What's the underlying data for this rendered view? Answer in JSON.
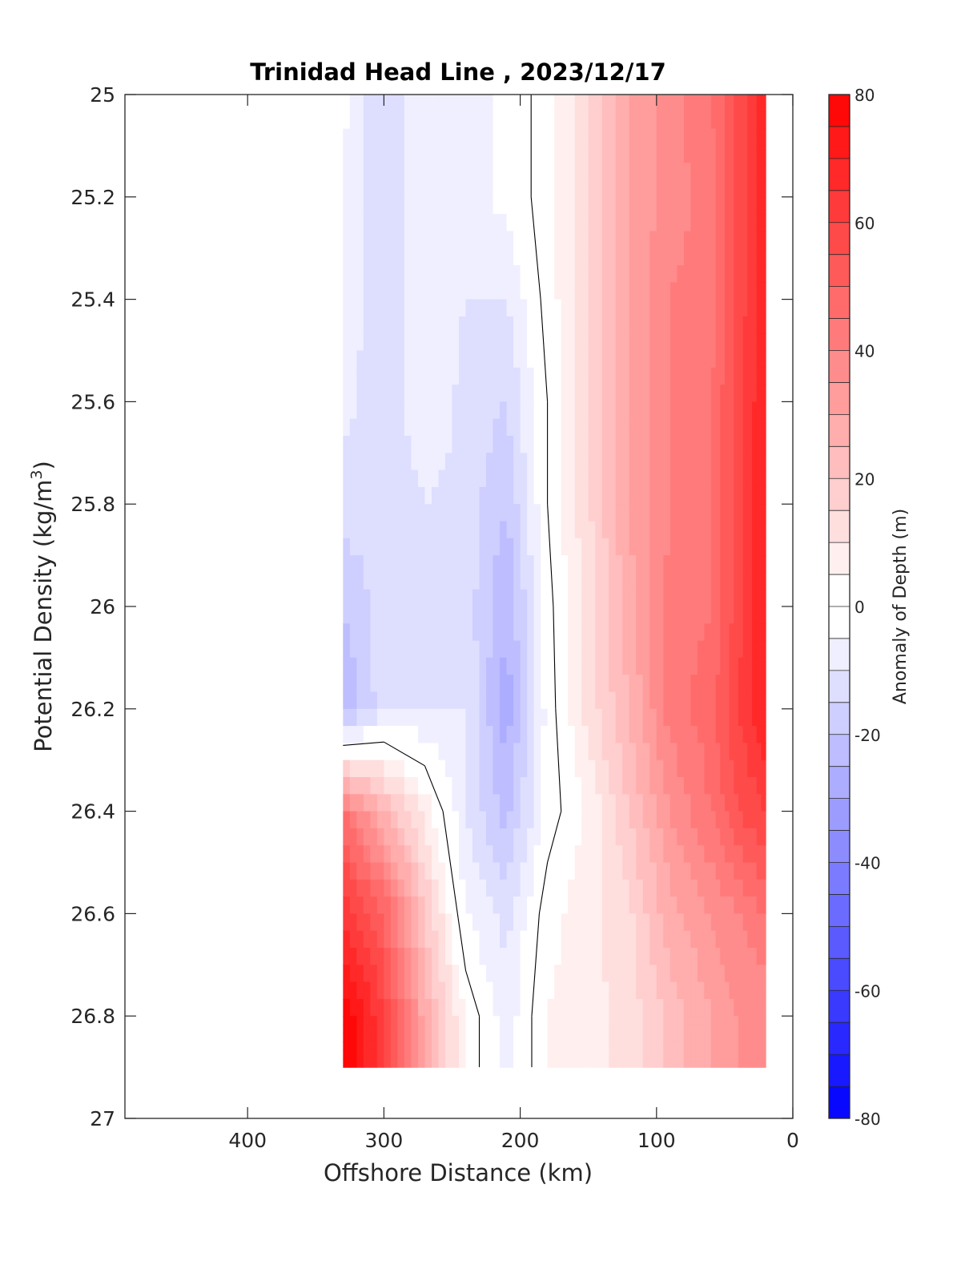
{
  "chart_data": {
    "type": "heatmap",
    "title": "Trinidad Head Line , 2023/12/17",
    "xlabel": "Offshore Distance (km)",
    "ylabel": "Potential Density (kg/m",
    "ylabel_sup": "3",
    "ylabel_close": ")",
    "colorbar_label": "Anomaly of Depth (m)",
    "x_axis": {
      "min": 0,
      "max": 490,
      "reversed": true,
      "ticks": [
        400,
        300,
        200,
        100,
        0
      ]
    },
    "y_axis": {
      "min": 25,
      "max": 27,
      "reversed": true,
      "ticks": [
        "25",
        "25.2",
        "25.4",
        "25.6",
        "25.8",
        "26",
        "26.2",
        "26.4",
        "26.6",
        "26.8",
        "27"
      ]
    },
    "colorbar": {
      "min": -80,
      "max": 80,
      "step": 5,
      "ticks": [
        "80",
        "60",
        "40",
        "20",
        "0",
        "-20",
        "-40",
        "-60",
        "-80"
      ]
    },
    "colormap": {
      "negative": "#0000ff",
      "zero": "#ffffff",
      "positive": "#ff0000"
    },
    "contour_levels": [
      0
    ],
    "grid": false,
    "x": [
      330,
      300,
      270,
      240,
      210,
      180,
      150,
      120,
      90,
      60,
      40,
      20
    ],
    "y": [
      25.0,
      25.2,
      25.4,
      25.6,
      25.8,
      26.0,
      26.2,
      26.4,
      26.6,
      26.8,
      26.9
    ],
    "anomaly": [
      [
        -3,
        -15,
        -5,
        -8,
        -3,
        2,
        14,
        30,
        38,
        45,
        57,
        68
      ],
      [
        -6,
        -15,
        -5,
        -8,
        -3,
        2,
        14,
        30,
        38,
        42,
        57,
        68
      ],
      [
        -6,
        -14,
        -5,
        -10,
        -10,
        2,
        14,
        30,
        40,
        42,
        57,
        68
      ],
      [
        -8,
        -15,
        -5,
        -12,
        -15,
        0,
        14,
        30,
        40,
        45,
        58,
        70
      ],
      [
        -12,
        -15,
        -10,
        -12,
        -20,
        0,
        14,
        30,
        40,
        45,
        58,
        70
      ],
      [
        -20,
        -12,
        -10,
        -12,
        -25,
        -2,
        12,
        28,
        42,
        45,
        58,
        70
      ],
      [
        -25,
        -12,
        -10,
        -10,
        -28,
        -3,
        12,
        25,
        42,
        48,
        60,
        70
      ],
      [
        45,
        25,
        8,
        -10,
        -22,
        -3,
        6,
        20,
        35,
        45,
        55,
        60
      ],
      [
        65,
        50,
        20,
        -5,
        -12,
        3,
        8,
        14,
        28,
        35,
        40,
        45
      ],
      [
        80,
        60,
        28,
        4,
        -8,
        5,
        8,
        12,
        22,
        30,
        35,
        35
      ],
      [
        80,
        60,
        28,
        4,
        -8,
        5,
        8,
        12,
        22,
        30,
        35,
        35
      ]
    ]
  }
}
